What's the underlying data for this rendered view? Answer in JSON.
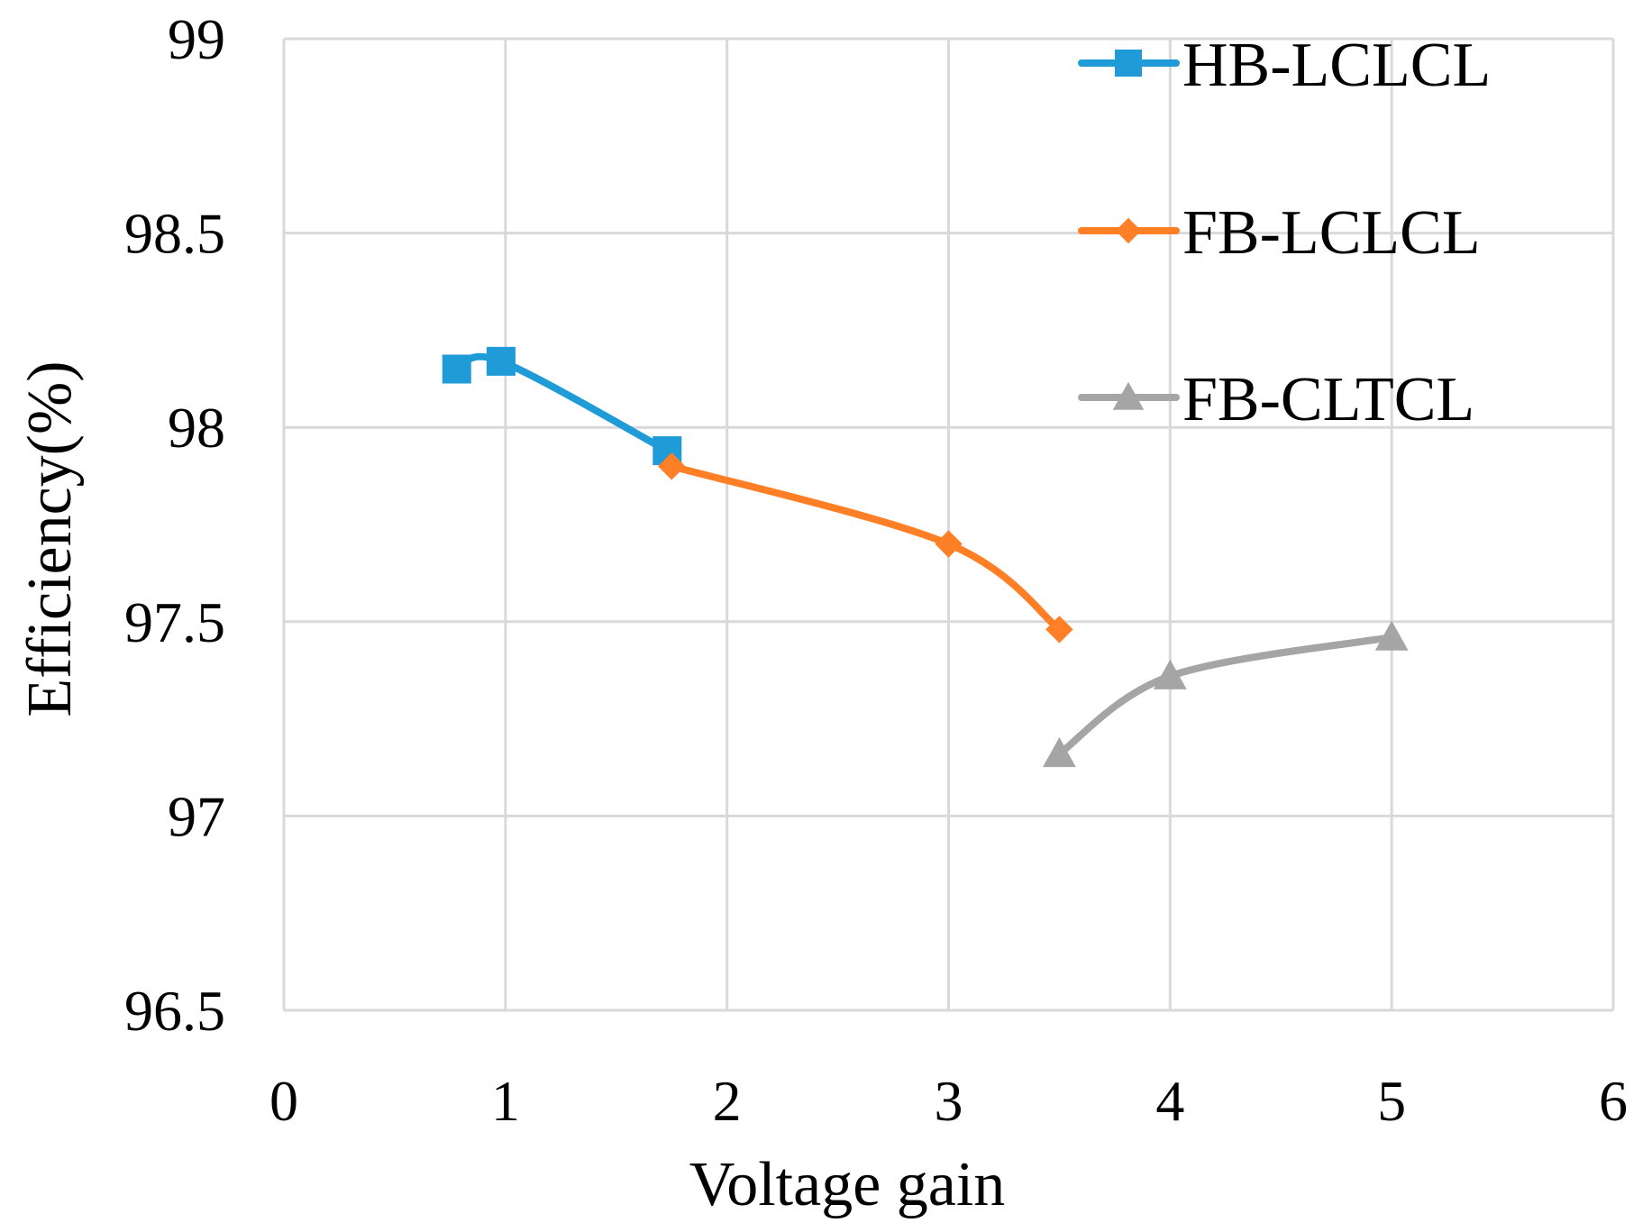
{
  "chart_data": {
    "type": "line",
    "title": "",
    "xlabel": "Voltage gain",
    "ylabel": "Efficiency(%)",
    "xlim": [
      0,
      6
    ],
    "ylim": [
      96.5,
      99
    ],
    "x_ticks": [
      "0",
      "1",
      "2",
      "3",
      "4",
      "5",
      "6"
    ],
    "y_ticks": [
      "96.5",
      "97",
      "97.5",
      "98",
      "98.5",
      "99"
    ],
    "grid": true,
    "legend_position": "top-right",
    "series": [
      {
        "name": "HB-LCLCL",
        "color": "#1f9bd7",
        "marker": "square",
        "x": [
          0.78,
          0.98,
          1.73
        ],
        "y": [
          98.15,
          98.17,
          97.94
        ]
      },
      {
        "name": "FB-LCLCL",
        "color": "#ff7f27",
        "marker": "diamond",
        "x": [
          1.75,
          3.0,
          3.5
        ],
        "y": [
          97.9,
          97.7,
          97.48
        ]
      },
      {
        "name": "FB-CLTCL",
        "color": "#a5a5a5",
        "marker": "triangle",
        "x": [
          3.5,
          4.0,
          5.0
        ],
        "y": [
          97.16,
          97.36,
          97.46
        ]
      }
    ]
  }
}
